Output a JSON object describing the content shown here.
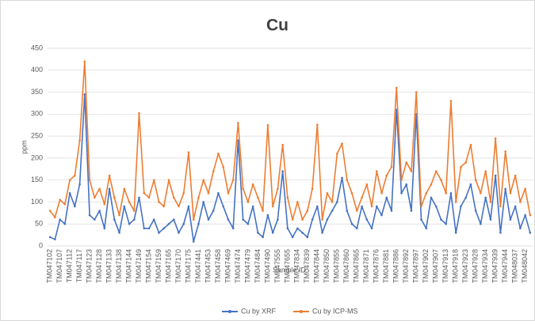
{
  "chart_data": {
    "type": "line",
    "title": "Cu",
    "x_label": "Sample ID",
    "y_label": "ppm",
    "categories": [
      "TM047102",
      null,
      "TM047107",
      null,
      "TM047112",
      null,
      "TM047117",
      null,
      "TM047123",
      null,
      "TM047128",
      null,
      "TM047133",
      null,
      "TM047138",
      null,
      "TM047144",
      null,
      "TM047149",
      null,
      "TM047154",
      null,
      "TM047159",
      null,
      "TM047165",
      null,
      "TM047170",
      null,
      "TM047175",
      null,
      "TM047441",
      null,
      "TM047453",
      null,
      "TM047458",
      null,
      "TM047469",
      null,
      "TM047474",
      null,
      "TM047479",
      null,
      "TM047484",
      null,
      "TM047490",
      null,
      "TM047555",
      null,
      "TM047655",
      null,
      "TM047834",
      null,
      "TM047839",
      null,
      "TM047844",
      null,
      "TM047850",
      null,
      "TM047855",
      null,
      "TM047860",
      null,
      "TM047865",
      null,
      "TM047871",
      null,
      "TM047876",
      null,
      "TM047881",
      null,
      "TM047886",
      null,
      "TM047892",
      null,
      "TM047897",
      null,
      "TM047902",
      null,
      "TM047907",
      null,
      "TM047913",
      null,
      "TM047918",
      null,
      "TM047923",
      null,
      "TM047928",
      null,
      "TM047934",
      null,
      "TM047939",
      null,
      "TM047944",
      null,
      "TM048037",
      null,
      "TM048042",
      null
    ],
    "series": [
      {
        "name": "Cu by XRF",
        "color": "#4472c4",
        "values": [
          20,
          15,
          60,
          50,
          120,
          90,
          140,
          345,
          70,
          60,
          80,
          40,
          130,
          60,
          30,
          90,
          50,
          60,
          110,
          40,
          40,
          60,
          30,
          40,
          50,
          60,
          30,
          50,
          90,
          10,
          50,
          100,
          60,
          80,
          120,
          90,
          60,
          40,
          240,
          60,
          50,
          90,
          30,
          20,
          70,
          30,
          60,
          170,
          40,
          20,
          40,
          30,
          20,
          60,
          90,
          30,
          60,
          80,
          100,
          155,
          80,
          50,
          40,
          90,
          60,
          40,
          90,
          70,
          110,
          80,
          310,
          120,
          140,
          80,
          300,
          60,
          40,
          110,
          90,
          60,
          50,
          120,
          30,
          90,
          110,
          140,
          80,
          50,
          110,
          60,
          160,
          30,
          130,
          60,
          90,
          40,
          70,
          30
        ]
      },
      {
        "name": "Cu by ICP-MS",
        "color": "#ed7d31",
        "values": [
          80,
          65,
          105,
          95,
          150,
          160,
          240,
          420,
          150,
          110,
          130,
          95,
          160,
          110,
          70,
          130,
          100,
          80,
          302,
          120,
          110,
          150,
          100,
          90,
          150,
          110,
          90,
          120,
          213,
          60,
          110,
          150,
          120,
          170,
          210,
          180,
          120,
          150,
          280,
          130,
          100,
          140,
          110,
          80,
          275,
          90,
          130,
          230,
          110,
          60,
          100,
          60,
          80,
          130,
          276,
          60,
          120,
          100,
          210,
          233,
          150,
          120,
          80,
          110,
          140,
          90,
          170,
          120,
          160,
          180,
          360,
          150,
          190,
          170,
          350,
          90,
          120,
          140,
          170,
          150,
          120,
          330,
          100,
          180,
          190,
          230,
          150,
          120,
          170,
          100,
          245,
          90,
          215,
          120,
          160,
          100,
          130,
          70
        ]
      }
    ],
    "ylim": [
      0,
      450
    ],
    "yticks": [
      0,
      50,
      100,
      150,
      200,
      250,
      300,
      350,
      400,
      450
    ],
    "grid": true,
    "legend": "bottom"
  }
}
